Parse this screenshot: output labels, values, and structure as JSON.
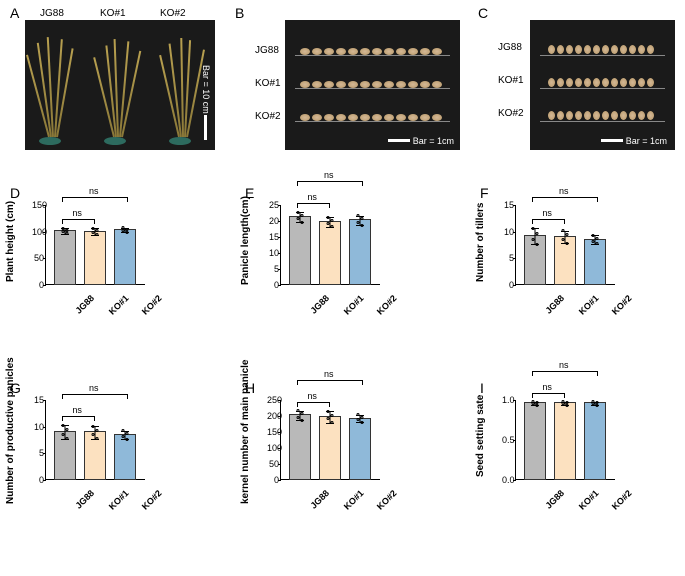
{
  "panels": {
    "A": "A",
    "B": "B",
    "C": "C",
    "D": "D",
    "E": "E",
    "F": "F",
    "G": "G",
    "H": "H",
    "I": "I"
  },
  "genotypes": [
    "JG88",
    "KO#1",
    "KO#2"
  ],
  "scale_bars": {
    "A": "Bar = 10 cm",
    "B": "Bar = 1cm",
    "C": "Bar = 1cm"
  },
  "colors": {
    "jg88": "#b9b9b9",
    "ko1": "#fce1c0",
    "ko2": "#8fb9d9",
    "border": "#333333"
  },
  "sig": "ns",
  "charts": {
    "D": {
      "ylabel": "Plant height (cm)",
      "ymax": 150,
      "ytick_step": 50,
      "values": [
        103,
        102,
        105
      ],
      "err": [
        5,
        6,
        4
      ]
    },
    "E": {
      "ylabel": "Panicle length(cm)",
      "ymax": 25,
      "ytick_step": 5,
      "values": [
        21.5,
        20,
        20.5
      ],
      "err": [
        1.5,
        1.5,
        1.5
      ]
    },
    "F": {
      "ylabel": "Number of tillers",
      "ymax": 15,
      "ytick_step": 5,
      "values": [
        9.3,
        9.2,
        8.7
      ],
      "err": [
        1.5,
        1.2,
        0.8
      ]
    },
    "G": {
      "ylabel": "Number of productive panicles",
      "ymax": 15,
      "ytick_step": 5,
      "values": [
        9.2,
        9.1,
        8.6
      ],
      "err": [
        1.3,
        1.2,
        0.8
      ]
    },
    "H": {
      "ylabel": "kernel number of main panicle",
      "ymax": 250,
      "ytick_step": 50,
      "values": [
        205,
        200,
        195
      ],
      "err": [
        15,
        18,
        12
      ]
    },
    "I": {
      "ylabel": "Seed setting sate",
      "ymax": 1.0,
      "ytick_step": 0.5,
      "values": [
        0.97,
        0.97,
        0.97
      ],
      "err": [
        0.02,
        0.02,
        0.02
      ],
      "decimals": 1
    }
  }
}
